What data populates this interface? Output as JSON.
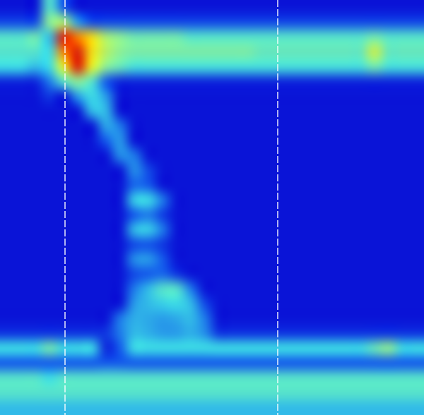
{
  "chart_data": {
    "type": "heatmap",
    "xlim": [
      0,
      30
    ],
    "ylim": [
      0,
      28
    ],
    "tick_labels": false,
    "grid": false,
    "color_range": [
      0,
      100
    ],
    "vlines": [
      4.6,
      19.65
    ],
    "cells": [
      [
        0,
        0,
        0,
        45,
        20,
        0,
        0,
        0,
        0,
        0,
        0,
        0,
        0,
        0,
        0,
        0,
        0,
        0,
        0,
        0,
        0,
        0,
        0,
        0,
        0,
        0,
        0,
        0,
        0,
        0
      ],
      [
        15,
        15,
        15,
        55,
        60,
        30,
        15,
        15,
        15,
        15,
        15,
        15,
        15,
        15,
        15,
        15,
        15,
        15,
        15,
        15,
        15,
        15,
        15,
        15,
        15,
        15,
        15,
        15,
        15,
        15
      ],
      [
        45,
        45,
        50,
        35,
        95,
        85,
        75,
        60,
        55,
        50,
        50,
        50,
        50,
        45,
        45,
        45,
        45,
        45,
        45,
        45,
        45,
        45,
        45,
        45,
        45,
        45,
        50,
        45,
        45,
        45
      ],
      [
        45,
        45,
        45,
        40,
        85,
        95,
        75,
        62,
        55,
        52,
        52,
        52,
        52,
        52,
        52,
        52,
        52,
        52,
        48,
        48,
        48,
        48,
        48,
        48,
        48,
        48,
        65,
        48,
        48,
        48
      ],
      [
        40,
        40,
        35,
        40,
        70,
        95,
        70,
        55,
        48,
        42,
        42,
        42,
        42,
        42,
        42,
        42,
        42,
        42,
        42,
        42,
        42,
        42,
        42,
        42,
        42,
        42,
        50,
        42,
        42,
        42
      ],
      [
        5,
        5,
        5,
        25,
        45,
        55,
        45,
        20,
        5,
        5,
        5,
        5,
        5,
        5,
        5,
        5,
        5,
        5,
        5,
        5,
        5,
        5,
        5,
        5,
        5,
        5,
        5,
        5,
        5,
        5
      ],
      [
        0,
        0,
        0,
        10,
        0,
        30,
        40,
        30,
        0,
        0,
        0,
        0,
        0,
        0,
        0,
        0,
        0,
        0,
        0,
        0,
        0,
        0,
        0,
        0,
        0,
        0,
        0,
        0,
        0,
        0
      ],
      [
        0,
        0,
        0,
        0,
        0,
        0,
        35,
        35,
        0,
        0,
        0,
        0,
        0,
        0,
        0,
        0,
        0,
        0,
        0,
        0,
        0,
        0,
        0,
        0,
        0,
        0,
        0,
        0,
        0,
        0
      ],
      [
        0,
        0,
        0,
        0,
        0,
        0,
        0,
        32,
        25,
        0,
        0,
        0,
        0,
        0,
        0,
        0,
        0,
        0,
        0,
        0,
        0,
        0,
        0,
        0,
        0,
        0,
        0,
        0,
        0,
        0
      ],
      [
        0,
        0,
        0,
        0,
        0,
        0,
        0,
        20,
        30,
        0,
        0,
        0,
        0,
        0,
        0,
        0,
        0,
        0,
        0,
        0,
        0,
        0,
        0,
        0,
        0,
        0,
        0,
        0,
        0,
        0
      ],
      [
        0,
        0,
        0,
        0,
        0,
        0,
        0,
        0,
        28,
        25,
        0,
        0,
        0,
        0,
        0,
        0,
        0,
        0,
        0,
        0,
        0,
        0,
        0,
        0,
        0,
        0,
        0,
        0,
        0,
        0
      ],
      [
        0,
        0,
        0,
        0,
        0,
        0,
        0,
        0,
        0,
        28,
        15,
        0,
        0,
        0,
        0,
        0,
        0,
        0,
        0,
        0,
        0,
        0,
        0,
        0,
        0,
        0,
        0,
        0,
        0,
        0
      ],
      [
        0,
        0,
        0,
        0,
        0,
        0,
        0,
        0,
        0,
        22,
        20,
        0,
        0,
        0,
        0,
        0,
        0,
        0,
        0,
        0,
        0,
        0,
        0,
        0,
        0,
        0,
        0,
        0,
        0,
        0
      ],
      [
        0,
        0,
        0,
        0,
        0,
        0,
        0,
        0,
        0,
        38,
        40,
        25,
        0,
        0,
        0,
        0,
        0,
        0,
        0,
        0,
        0,
        0,
        0,
        0,
        0,
        0,
        0,
        0,
        0,
        0
      ],
      [
        0,
        0,
        0,
        0,
        0,
        0,
        0,
        0,
        0,
        20,
        25,
        12,
        0,
        0,
        0,
        0,
        0,
        0,
        0,
        0,
        0,
        0,
        0,
        0,
        0,
        0,
        0,
        0,
        0,
        0
      ],
      [
        0,
        0,
        0,
        0,
        0,
        0,
        0,
        0,
        0,
        35,
        38,
        25,
        0,
        0,
        0,
        0,
        0,
        0,
        0,
        0,
        0,
        0,
        0,
        0,
        0,
        0,
        0,
        0,
        0,
        0
      ],
      [
        0,
        0,
        0,
        0,
        0,
        0,
        0,
        0,
        0,
        15,
        18,
        10,
        0,
        0,
        0,
        0,
        0,
        0,
        0,
        0,
        0,
        0,
        0,
        0,
        0,
        0,
        0,
        0,
        0,
        0
      ],
      [
        0,
        0,
        0,
        0,
        0,
        0,
        0,
        0,
        0,
        28,
        30,
        20,
        0,
        0,
        0,
        0,
        0,
        0,
        0,
        0,
        0,
        0,
        0,
        0,
        0,
        0,
        0,
        0,
        0,
        0
      ],
      [
        0,
        0,
        0,
        0,
        0,
        0,
        0,
        0,
        0,
        15,
        20,
        22,
        10,
        0,
        0,
        0,
        0,
        0,
        0,
        0,
        0,
        0,
        0,
        0,
        0,
        0,
        0,
        0,
        0,
        0
      ],
      [
        0,
        0,
        0,
        0,
        0,
        0,
        0,
        0,
        0,
        25,
        35,
        45,
        45,
        25,
        0,
        0,
        0,
        0,
        0,
        0,
        0,
        0,
        0,
        0,
        0,
        0,
        0,
        0,
        0,
        0
      ],
      [
        0,
        0,
        0,
        0,
        0,
        0,
        0,
        0,
        0,
        30,
        35,
        38,
        40,
        35,
        15,
        0,
        0,
        0,
        0,
        0,
        0,
        0,
        0,
        0,
        0,
        0,
        0,
        0,
        0,
        0
      ],
      [
        0,
        0,
        0,
        0,
        0,
        0,
        0,
        0,
        25,
        33,
        32,
        30,
        32,
        35,
        25,
        0,
        0,
        0,
        0,
        0,
        0,
        0,
        0,
        0,
        0,
        0,
        0,
        0,
        0,
        0
      ],
      [
        10,
        10,
        10,
        10,
        10,
        10,
        10,
        10,
        25,
        35,
        33,
        30,
        30,
        33,
        28,
        10,
        10,
        10,
        10,
        10,
        10,
        10,
        10,
        10,
        10,
        10,
        10,
        10,
        10,
        10
      ],
      [
        40,
        40,
        40,
        50,
        40,
        40,
        40,
        5,
        20,
        40,
        40,
        40,
        40,
        40,
        40,
        40,
        40,
        40,
        40,
        40,
        40,
        40,
        40,
        40,
        40,
        40,
        48,
        55,
        40,
        40
      ],
      [
        20,
        20,
        20,
        20,
        20,
        20,
        20,
        20,
        20,
        20,
        20,
        20,
        20,
        20,
        20,
        20,
        20,
        20,
        20,
        20,
        20,
        20,
        20,
        20,
        20,
        20,
        20,
        20,
        20,
        20
      ],
      [
        45,
        45,
        45,
        40,
        45,
        45,
        45,
        45,
        45,
        45,
        45,
        45,
        45,
        45,
        45,
        45,
        45,
        45,
        45,
        45,
        45,
        45,
        45,
        45,
        45,
        45,
        45,
        45,
        45,
        45
      ],
      [
        45,
        45,
        45,
        45,
        45,
        45,
        45,
        45,
        45,
        45,
        45,
        45,
        45,
        45,
        45,
        45,
        45,
        45,
        45,
        45,
        45,
        45,
        45,
        45,
        45,
        45,
        45,
        45,
        45,
        45
      ],
      [
        35,
        35,
        35,
        35,
        35,
        35,
        35,
        35,
        35,
        35,
        35,
        35,
        35,
        35,
        35,
        35,
        35,
        35,
        35,
        35,
        35,
        35,
        35,
        35,
        35,
        35,
        35,
        35,
        35,
        35
      ]
    ]
  }
}
